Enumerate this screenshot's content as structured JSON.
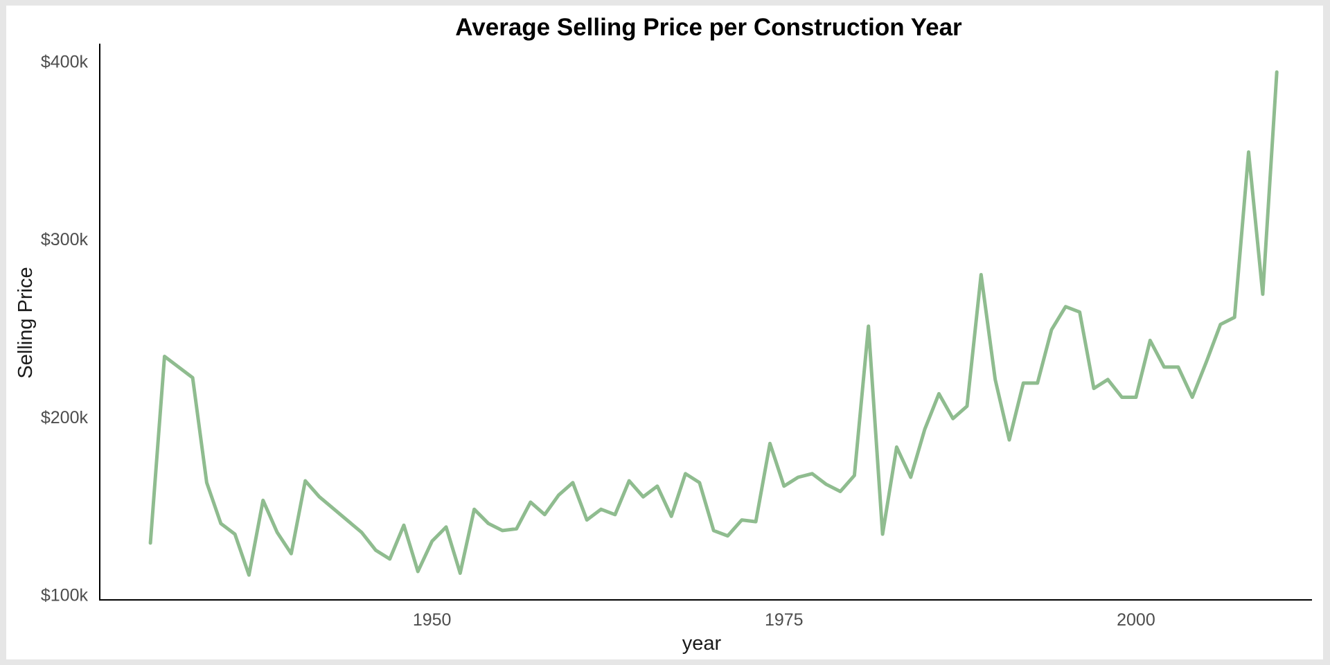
{
  "chart_data": {
    "type": "line",
    "title": "Average Selling Price per Construction Year",
    "xlabel": "year",
    "ylabel": "Selling Price",
    "xlim": [
      1926.5,
      2012.5
    ],
    "ylim": [
      97000,
      410000
    ],
    "x_ticks": [
      1950,
      1975,
      2000
    ],
    "x_tick_labels": [
      "1950",
      "1975",
      "2000"
    ],
    "y_ticks": [
      100000,
      200000,
      300000,
      400000
    ],
    "y_tick_labels": [
      "$100k",
      "$200k",
      "$300k",
      "$400k"
    ],
    "grid": false,
    "line_color": "#8fbc8f",
    "series": [
      {
        "x": [
          1930,
          1931,
          1933,
          1934,
          1935,
          1936,
          1937,
          1938,
          1939,
          1940,
          1941,
          1942,
          1945,
          1946,
          1947,
          1948,
          1949,
          1950,
          1951,
          1952,
          1953,
          1954,
          1955,
          1956,
          1957,
          1958,
          1959,
          1960,
          1961,
          1962,
          1963,
          1964,
          1965,
          1966,
          1967,
          1968,
          1969,
          1970,
          1971,
          1972,
          1973,
          1974,
          1975,
          1976,
          1977,
          1978,
          1979,
          1980,
          1981,
          1982,
          1983,
          1984,
          1985,
          1986,
          1987,
          1988,
          1989,
          1990,
          1991,
          1992,
          1993,
          1994,
          1995,
          1996,
          1997,
          1998,
          1999,
          2000,
          2001,
          2002,
          2003,
          2004,
          2005,
          2006,
          2007,
          2008,
          2009,
          2010
        ],
        "values": [
          129000,
          234000,
          222000,
          163000,
          140000,
          134000,
          111000,
          153000,
          135000,
          123000,
          164000,
          155000,
          135000,
          125000,
          120000,
          139000,
          113000,
          130000,
          138000,
          112000,
          148000,
          140000,
          136000,
          137000,
          152000,
          145000,
          156000,
          163000,
          142000,
          148000,
          145000,
          164000,
          155000,
          161000,
          144000,
          168000,
          163000,
          136000,
          133000,
          142000,
          141000,
          185000,
          161000,
          166000,
          168000,
          162000,
          158000,
          167000,
          251000,
          134000,
          183000,
          166000,
          193000,
          213000,
          199000,
          206000,
          280000,
          221000,
          187000,
          219000,
          219000,
          249000,
          262000,
          259000,
          216000,
          221000,
          211000,
          211000,
          243000,
          228000,
          228000,
          211000,
          231000,
          252000,
          256000,
          349000,
          269000,
          394000
        ]
      }
    ]
  }
}
